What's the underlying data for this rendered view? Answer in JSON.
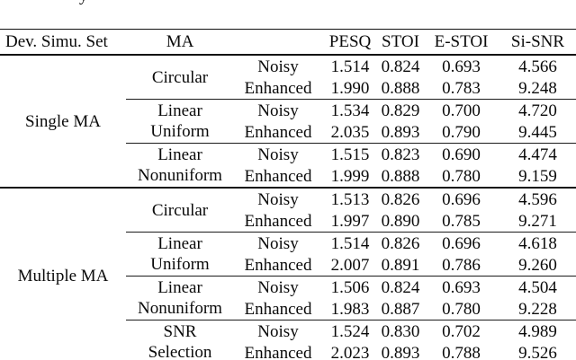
{
  "caption_remnant": "y",
  "table": {
    "header": {
      "dev_set": "Dev. Simu. Set",
      "ma": "MA",
      "condition": "",
      "metrics": [
        "PESQ",
        "STOI",
        "E-STOI",
        "Si-SNR"
      ]
    },
    "groups": [
      {
        "name": "Single MA",
        "blocks": [
          {
            "ma_line1": "Circular",
            "ma_line2": "",
            "rows": [
              {
                "condition": "Noisy",
                "values": [
                  "1.514",
                  "0.824",
                  "0.693",
                  "4.566"
                ]
              },
              {
                "condition": "Enhanced",
                "values": [
                  "1.990",
                  "0.888",
                  "0.783",
                  "9.248"
                ]
              }
            ]
          },
          {
            "ma_line1": "Linear",
            "ma_line2": "Uniform",
            "rows": [
              {
                "condition": "Noisy",
                "values": [
                  "1.534",
                  "0.829",
                  "0.700",
                  "4.720"
                ]
              },
              {
                "condition": "Enhanced",
                "values": [
                  "2.035",
                  "0.893",
                  "0.790",
                  "9.445"
                ]
              }
            ]
          },
          {
            "ma_line1": "Linear",
            "ma_line2": "Nonuniform",
            "rows": [
              {
                "condition": "Noisy",
                "values": [
                  "1.515",
                  "0.823",
                  "0.690",
                  "4.474"
                ]
              },
              {
                "condition": "Enhanced",
                "values": [
                  "1.999",
                  "0.888",
                  "0.780",
                  "9.159"
                ]
              }
            ]
          }
        ]
      },
      {
        "name": "Multiple MA",
        "blocks": [
          {
            "ma_line1": "Circular",
            "ma_line2": "",
            "rows": [
              {
                "condition": "Noisy",
                "values": [
                  "1.513",
                  "0.826",
                  "0.696",
                  "4.596"
                ]
              },
              {
                "condition": "Enhanced",
                "values": [
                  "1.997",
                  "0.890",
                  "0.785",
                  "9.271"
                ]
              }
            ]
          },
          {
            "ma_line1": "Linear",
            "ma_line2": "Uniform",
            "rows": [
              {
                "condition": "Noisy",
                "values": [
                  "1.514",
                  "0.826",
                  "0.696",
                  "4.618"
                ]
              },
              {
                "condition": "Enhanced",
                "values": [
                  "2.007",
                  "0.891",
                  "0.786",
                  "9.260"
                ]
              }
            ]
          },
          {
            "ma_line1": "Linear",
            "ma_line2": "Nonuniform",
            "rows": [
              {
                "condition": "Noisy",
                "values": [
                  "1.506",
                  "0.824",
                  "0.693",
                  "4.504"
                ]
              },
              {
                "condition": "Enhanced",
                "values": [
                  "1.983",
                  "0.887",
                  "0.780",
                  "9.228"
                ]
              }
            ]
          },
          {
            "ma_line1": "SNR",
            "ma_line2": "Selection",
            "rows": [
              {
                "condition": "Noisy",
                "values": [
                  "1.524",
                  "0.830",
                  "0.702",
                  "4.989"
                ]
              },
              {
                "condition": "Enhanced",
                "values": [
                  "2.023",
                  "0.893",
                  "0.788",
                  "9.526"
                ]
              }
            ]
          }
        ]
      }
    ]
  }
}
